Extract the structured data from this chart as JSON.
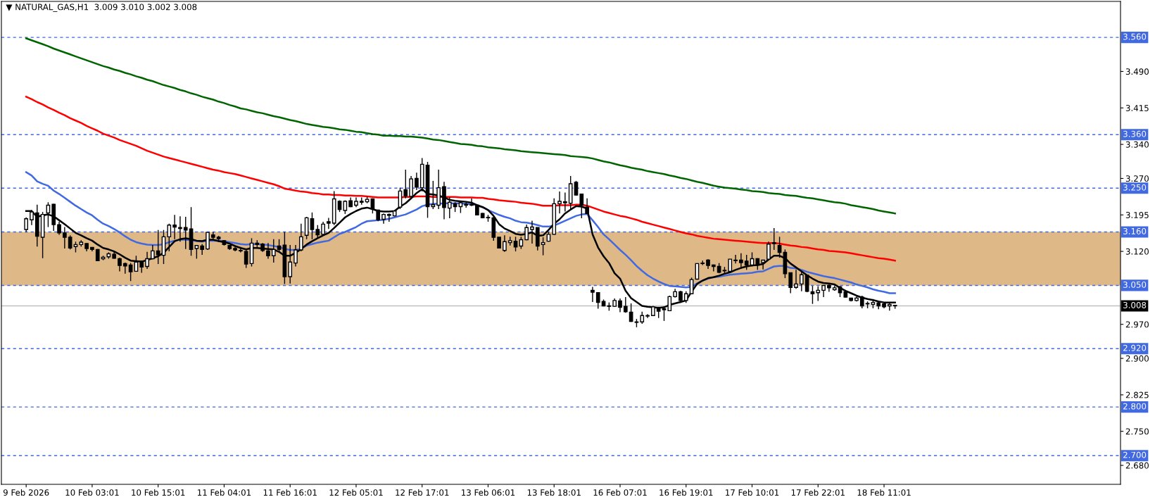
{
  "chart_data": {
    "type": "candlestick",
    "title": "▼ NATURAL_GAS,H1  3.009 3.010 3.002 3.008",
    "color": "#000000",
    "categories": [
      "9 Feb 2026",
      null,
      null,
      null,
      null,
      null,
      null,
      null,
      null,
      null,
      null,
      null,
      "10 Feb 03:01",
      null,
      null,
      null,
      null,
      null,
      null,
      null,
      null,
      null,
      null,
      null,
      "10 Feb 15:01",
      null,
      null,
      null,
      null,
      null,
      null,
      null,
      null,
      null,
      null,
      null,
      "11 Feb 04:01",
      null,
      null,
      null,
      null,
      null,
      null,
      null,
      null,
      null,
      null,
      null,
      "11 Feb 16:01",
      null,
      null,
      null,
      null,
      null,
      null,
      null,
      null,
      null,
      null,
      null,
      "12 Feb 05:01",
      null,
      null,
      null,
      null,
      null,
      null,
      null,
      null,
      null,
      null,
      null,
      "12 Feb 17:01",
      null,
      null,
      null,
      null,
      null,
      null,
      null,
      null,
      null,
      null,
      null,
      "13 Feb 06:01",
      null,
      null,
      null,
      null,
      null,
      null,
      null,
      null,
      null,
      null,
      null,
      "13 Feb 18:01",
      null,
      null,
      null,
      null,
      null,
      null,
      null,
      null,
      null,
      null,
      null,
      "16 Feb 07:01",
      null,
      null,
      null,
      null,
      null,
      null,
      null,
      null,
      null,
      null,
      null,
      "16 Feb 19:01",
      null,
      null,
      null,
      null,
      null,
      null,
      null,
      null,
      null,
      null,
      null,
      "17 Feb 10:01",
      null,
      null,
      null,
      null,
      null,
      null,
      null,
      null,
      null,
      null,
      null,
      "17 Feb 22:01",
      null,
      null,
      null,
      null,
      null,
      null,
      null,
      null,
      null,
      null,
      null,
      "18 Feb 11:01",
      null,
      null
    ],
    "ohlc": [
      [
        3.165,
        3.19,
        3.16,
        3.187
      ],
      [
        3.185,
        3.205,
        3.174,
        3.201
      ],
      [
        3.199,
        3.216,
        3.13,
        3.151
      ],
      [
        3.149,
        3.201,
        3.106,
        3.196
      ],
      [
        3.199,
        3.221,
        3.17,
        3.215
      ],
      [
        3.217,
        3.218,
        3.162,
        3.175
      ],
      [
        3.175,
        3.181,
        3.154,
        3.158
      ],
      [
        3.158,
        3.17,
        3.126,
        3.149
      ],
      [
        3.149,
        3.153,
        3.124,
        3.127
      ],
      [
        3.13,
        3.14,
        3.118,
        3.134
      ],
      [
        3.134,
        3.143,
        3.13,
        3.139
      ],
      [
        3.136,
        3.137,
        3.12,
        3.126
      ],
      [
        3.128,
        3.128,
        3.12,
        3.124
      ],
      [
        3.124,
        3.125,
        3.1,
        3.101
      ],
      [
        3.105,
        3.111,
        3.102,
        3.108
      ],
      [
        3.109,
        3.118,
        3.105,
        3.115
      ],
      [
        3.114,
        3.121,
        3.105,
        3.106
      ],
      [
        3.105,
        3.107,
        3.079,
        3.091
      ],
      [
        3.095,
        3.097,
        3.074,
        3.09
      ],
      [
        3.092,
        3.096,
        3.059,
        3.078
      ],
      [
        3.079,
        3.111,
        3.078,
        3.098
      ],
      [
        3.098,
        3.101,
        3.076,
        3.088
      ],
      [
        3.089,
        3.119,
        3.084,
        3.105
      ],
      [
        3.105,
        3.133,
        3.104,
        3.121
      ],
      [
        3.121,
        3.164,
        3.094,
        3.113
      ],
      [
        3.112,
        3.164,
        3.094,
        3.15
      ],
      [
        3.15,
        3.177,
        3.12,
        3.174
      ],
      [
        3.174,
        3.195,
        3.145,
        3.17
      ],
      [
        3.169,
        3.192,
        3.14,
        3.167
      ],
      [
        3.169,
        3.191,
        3.125,
        3.164
      ],
      [
        3.166,
        3.211,
        3.111,
        3.124
      ],
      [
        3.126,
        3.133,
        3.105,
        3.132
      ],
      [
        3.131,
        3.135,
        3.113,
        3.124
      ],
      [
        3.125,
        3.159,
        3.123,
        3.159
      ],
      [
        3.154,
        3.16,
        3.145,
        3.149
      ],
      [
        3.149,
        3.152,
        3.139,
        3.146
      ],
      [
        3.142,
        3.143,
        3.132,
        3.134
      ],
      [
        3.132,
        3.132,
        3.123,
        3.126
      ],
      [
        3.126,
        3.13,
        3.12,
        3.123
      ],
      [
        3.122,
        3.129,
        3.118,
        3.121
      ],
      [
        3.12,
        3.125,
        3.086,
        3.094
      ],
      [
        3.095,
        3.147,
        3.089,
        3.137
      ],
      [
        3.137,
        3.143,
        3.129,
        3.134
      ],
      [
        3.135,
        3.137,
        3.119,
        3.122
      ],
      [
        3.121,
        3.137,
        3.105,
        3.111
      ],
      [
        3.111,
        3.145,
        3.097,
        3.124
      ],
      [
        3.131,
        3.145,
        3.12,
        3.124
      ],
      [
        3.133,
        3.16,
        3.053,
        3.068
      ],
      [
        3.068,
        3.133,
        3.054,
        3.098
      ],
      [
        3.096,
        3.133,
        3.089,
        3.123
      ],
      [
        3.123,
        3.177,
        3.12,
        3.15
      ],
      [
        3.153,
        3.191,
        3.145,
        3.189
      ],
      [
        3.187,
        3.2,
        3.145,
        3.165
      ],
      [
        3.165,
        3.174,
        3.147,
        3.154
      ],
      [
        3.155,
        3.181,
        3.152,
        3.176
      ],
      [
        3.181,
        3.189,
        3.166,
        3.178
      ],
      [
        3.178,
        3.244,
        3.174,
        3.228
      ],
      [
        3.223,
        3.225,
        3.201,
        3.206
      ],
      [
        3.204,
        3.225,
        3.197,
        3.223
      ],
      [
        3.224,
        3.231,
        3.211,
        3.212
      ],
      [
        3.215,
        3.231,
        3.211,
        3.223
      ],
      [
        3.223,
        3.231,
        3.216,
        3.221
      ],
      [
        3.222,
        3.233,
        3.219,
        3.227
      ],
      [
        3.228,
        3.229,
        3.198,
        3.207
      ],
      [
        3.205,
        3.206,
        3.182,
        3.185
      ],
      [
        3.186,
        3.198,
        3.177,
        3.196
      ],
      [
        3.196,
        3.198,
        3.181,
        3.194
      ],
      [
        3.193,
        3.205,
        3.192,
        3.203
      ],
      [
        3.211,
        3.251,
        3.207,
        3.244
      ],
      [
        3.247,
        3.288,
        3.229,
        3.234
      ],
      [
        3.233,
        3.275,
        3.233,
        3.269
      ],
      [
        3.27,
        3.282,
        3.246,
        3.252
      ],
      [
        3.251,
        3.312,
        3.243,
        3.299
      ],
      [
        3.297,
        3.304,
        3.189,
        3.212
      ],
      [
        3.212,
        3.265,
        3.207,
        3.216
      ],
      [
        3.215,
        3.288,
        3.207,
        3.251
      ],
      [
        3.253,
        3.263,
        3.186,
        3.21
      ],
      [
        3.209,
        3.231,
        3.188,
        3.221
      ],
      [
        3.218,
        3.221,
        3.201,
        3.212
      ],
      [
        3.212,
        3.224,
        3.199,
        3.22
      ],
      [
        3.217,
        3.221,
        3.21,
        3.215
      ],
      [
        3.216,
        3.229,
        3.213,
        3.215
      ],
      [
        3.215,
        3.216,
        3.195,
        3.195
      ],
      [
        3.198,
        3.199,
        3.188,
        3.189
      ],
      [
        3.19,
        3.195,
        3.181,
        3.189
      ],
      [
        3.189,
        3.192,
        3.142,
        3.149
      ],
      [
        3.149,
        3.149,
        3.126,
        3.127
      ],
      [
        3.122,
        3.153,
        3.119,
        3.14
      ],
      [
        3.138,
        3.15,
        3.132,
        3.142
      ],
      [
        3.141,
        3.15,
        3.12,
        3.129
      ],
      [
        3.131,
        3.15,
        3.125,
        3.144
      ],
      [
        3.144,
        3.175,
        3.143,
        3.169
      ],
      [
        3.165,
        3.183,
        3.136,
        3.17
      ],
      [
        3.169,
        3.169,
        3.122,
        3.131
      ],
      [
        3.134,
        3.149,
        3.112,
        3.138
      ],
      [
        3.141,
        3.16,
        3.14,
        3.155
      ],
      [
        3.155,
        3.229,
        3.154,
        3.218
      ],
      [
        3.218,
        3.243,
        3.198,
        3.223
      ],
      [
        3.22,
        3.241,
        3.202,
        3.222
      ],
      [
        3.219,
        3.275,
        3.205,
        3.259
      ],
      [
        3.262,
        3.265,
        3.235,
        3.236
      ],
      [
        3.238,
        3.238,
        3.188,
        3.215
      ],
      [
        3.211,
        3.229,
        3.198,
        3.198
      ],
      [
        3.04,
        3.047,
        3.016,
        3.036
      ],
      [
        3.035,
        3.035,
        3.002,
        3.015
      ],
      [
        3.017,
        3.021,
        3.007,
        3.008
      ],
      [
        3.008,
        3.015,
        2.998,
        3.007
      ],
      [
        3.007,
        3.023,
        3.006,
        3.019
      ],
      [
        3.018,
        3.023,
        2.995,
        3.005
      ],
      [
        3.007,
        3.026,
        2.994,
        2.996
      ],
      [
        2.995,
        3.013,
        2.975,
        2.976
      ],
      [
        2.975,
        2.981,
        2.964,
        2.974
      ],
      [
        2.975,
        2.996,
        2.971,
        2.988
      ],
      [
        2.987,
        2.991,
        2.983,
        2.988
      ],
      [
        2.988,
        3.008,
        2.987,
        3.006
      ],
      [
        3.004,
        3.006,
        2.983,
        2.997
      ],
      [
        3.0,
        3.007,
        2.977,
        3.002
      ],
      [
        2.998,
        3.029,
        2.998,
        3.027
      ],
      [
        3.027,
        3.043,
        3.025,
        3.037
      ],
      [
        3.037,
        3.039,
        3.014,
        3.019
      ],
      [
        3.019,
        3.038,
        3.014,
        3.033
      ],
      [
        3.033,
        3.066,
        3.032,
        3.062
      ],
      [
        3.063,
        3.095,
        3.062,
        3.095
      ],
      [
        3.095,
        3.101,
        3.092,
        3.096
      ],
      [
        3.102,
        3.104,
        3.084,
        3.091
      ],
      [
        3.092,
        3.093,
        3.079,
        3.089
      ],
      [
        3.089,
        3.096,
        3.075,
        3.077
      ],
      [
        3.081,
        3.088,
        3.075,
        3.08
      ],
      [
        3.079,
        3.104,
        3.077,
        3.104
      ],
      [
        3.102,
        3.113,
        3.095,
        3.101
      ],
      [
        3.102,
        3.116,
        3.084,
        3.097
      ],
      [
        3.1,
        3.113,
        3.082,
        3.092
      ],
      [
        3.092,
        3.118,
        3.089,
        3.105
      ],
      [
        3.105,
        3.106,
        3.082,
        3.092
      ],
      [
        3.097,
        3.102,
        3.083,
        3.102
      ],
      [
        3.104,
        3.14,
        3.103,
        3.135
      ],
      [
        3.136,
        3.168,
        3.123,
        3.138
      ],
      [
        3.132,
        3.15,
        3.107,
        3.118
      ],
      [
        3.118,
        3.124,
        3.065,
        3.074
      ],
      [
        3.076,
        3.076,
        3.034,
        3.046
      ],
      [
        3.046,
        3.082,
        3.043,
        3.053
      ],
      [
        3.053,
        3.08,
        3.038,
        3.072
      ],
      [
        3.071,
        3.071,
        3.036,
        3.038
      ],
      [
        3.037,
        3.049,
        3.012,
        3.033
      ],
      [
        3.035,
        3.048,
        3.018,
        3.04
      ],
      [
        3.04,
        3.05,
        3.026,
        3.05
      ],
      [
        3.05,
        3.052,
        3.037,
        3.045
      ],
      [
        3.041,
        3.049,
        3.039,
        3.045
      ],
      [
        3.047,
        3.049,
        3.026,
        3.035
      ],
      [
        3.037,
        3.038,
        3.025,
        3.026
      ],
      [
        3.024,
        3.024,
        3.017,
        3.019
      ],
      [
        3.019,
        3.027,
        3.017,
        3.024
      ],
      [
        3.026,
        3.029,
        3.003,
        3.008
      ],
      [
        3.013,
        3.017,
        3.003,
        3.012
      ],
      [
        3.011,
        3.022,
        3.003,
        3.015
      ],
      [
        3.014,
        3.017,
        3.001,
        3.008
      ],
      [
        3.012,
        3.014,
        3.003,
        3.006
      ],
      [
        3.008,
        3.014,
        2.998,
        3.011
      ],
      [
        3.009,
        3.01,
        3.002,
        3.008
      ]
    ],
    "series": [
      {
        "type": "line",
        "color": "#006400",
        "values": [
          3.558,
          3.554,
          3.55,
          3.546,
          3.542,
          3.537,
          3.533,
          3.529,
          3.525,
          3.521,
          3.517,
          3.513,
          3.509,
          3.505,
          3.501,
          3.498,
          3.494,
          3.491,
          3.487,
          3.484,
          3.48,
          3.477,
          3.473,
          3.47,
          3.466,
          3.462,
          3.459,
          3.456,
          3.452,
          3.449,
          3.445,
          3.442,
          3.438,
          3.435,
          3.432,
          3.428,
          3.425,
          3.421,
          3.418,
          3.414,
          3.412,
          3.409,
          3.406,
          3.404,
          3.401,
          3.398,
          3.396,
          3.393,
          3.39,
          3.388,
          3.385,
          3.382,
          3.38,
          3.378,
          3.376,
          3.375,
          3.373,
          3.371,
          3.37,
          3.368,
          3.366,
          3.365,
          3.363,
          3.361,
          3.36,
          3.358,
          3.358,
          3.357,
          3.357,
          3.356,
          3.356,
          3.355,
          3.354,
          3.352,
          3.35,
          3.349,
          3.347,
          3.345,
          3.343,
          3.341,
          3.34,
          3.339,
          3.337,
          3.336,
          3.334,
          3.333,
          3.332,
          3.33,
          3.329,
          3.328,
          3.326,
          3.325,
          3.324,
          3.323,
          3.322,
          3.321,
          3.32,
          3.319,
          3.318,
          3.316,
          3.315,
          3.314,
          3.313,
          3.311,
          3.308,
          3.305,
          3.303,
          3.3,
          3.297,
          3.295,
          3.292,
          3.29,
          3.288,
          3.285,
          3.283,
          3.281,
          3.279,
          3.276,
          3.274,
          3.271,
          3.269,
          3.266,
          3.263,
          3.261,
          3.258,
          3.255,
          3.253,
          3.251,
          3.25,
          3.249,
          3.247,
          3.246,
          3.244,
          3.243,
          3.242,
          3.24,
          3.239,
          3.238,
          3.236,
          3.235,
          3.234,
          3.232,
          3.23,
          3.229,
          3.227,
          3.225,
          3.223,
          3.221,
          3.22,
          3.218,
          3.215,
          3.213,
          3.211,
          3.209,
          3.207,
          3.204,
          3.202,
          3.2,
          3.198
        ]
      },
      {
        "type": "line",
        "color": "#ff0000",
        "values": [
          3.438,
          3.433,
          3.427,
          3.422,
          3.416,
          3.411,
          3.405,
          3.4,
          3.394,
          3.389,
          3.384,
          3.378,
          3.373,
          3.368,
          3.362,
          3.358,
          3.354,
          3.349,
          3.345,
          3.341,
          3.337,
          3.332,
          3.327,
          3.323,
          3.319,
          3.315,
          3.312,
          3.309,
          3.306,
          3.303,
          3.3,
          3.297,
          3.294,
          3.291,
          3.288,
          3.286,
          3.283,
          3.281,
          3.279,
          3.276,
          3.273,
          3.27,
          3.267,
          3.264,
          3.261,
          3.258,
          3.254,
          3.249,
          3.247,
          3.245,
          3.243,
          3.242,
          3.24,
          3.239,
          3.237,
          3.237,
          3.236,
          3.236,
          3.235,
          3.235,
          3.234,
          3.234,
          3.233,
          3.232,
          3.231,
          3.231,
          3.231,
          3.231,
          3.231,
          3.232,
          3.232,
          3.233,
          3.233,
          3.233,
          3.232,
          3.232,
          3.232,
          3.232,
          3.232,
          3.231,
          3.231,
          3.231,
          3.23,
          3.23,
          3.228,
          3.227,
          3.225,
          3.224,
          3.223,
          3.222,
          3.22,
          3.219,
          3.218,
          3.216,
          3.214,
          3.214,
          3.214,
          3.215,
          3.215,
          3.215,
          3.216,
          3.216,
          3.214,
          3.21,
          3.206,
          3.202,
          3.199,
          3.196,
          3.193,
          3.191,
          3.188,
          3.185,
          3.181,
          3.178,
          3.175,
          3.172,
          3.169,
          3.166,
          3.163,
          3.16,
          3.157,
          3.155,
          3.152,
          3.15,
          3.148,
          3.146,
          3.145,
          3.144,
          3.143,
          3.142,
          3.141,
          3.14,
          3.139,
          3.138,
          3.137,
          3.137,
          3.137,
          3.136,
          3.134,
          3.132,
          3.131,
          3.129,
          3.128,
          3.126,
          3.124,
          3.123,
          3.121,
          3.12,
          3.119,
          3.118,
          3.116,
          3.114,
          3.112,
          3.11,
          3.108,
          3.106,
          3.105,
          3.103,
          3.101
        ]
      },
      {
        "type": "line",
        "color": "#4169e1",
        "values": [
          3.283,
          3.276,
          3.264,
          3.259,
          3.255,
          3.245,
          3.238,
          3.23,
          3.222,
          3.214,
          3.207,
          3.2,
          3.194,
          3.185,
          3.177,
          3.172,
          3.166,
          3.159,
          3.151,
          3.144,
          3.139,
          3.136,
          3.134,
          3.133,
          3.133,
          3.135,
          3.139,
          3.142,
          3.144,
          3.144,
          3.143,
          3.141,
          3.14,
          3.142,
          3.142,
          3.142,
          3.141,
          3.139,
          3.137,
          3.135,
          3.134,
          3.135,
          3.135,
          3.134,
          3.133,
          3.131,
          3.129,
          3.125,
          3.123,
          3.123,
          3.125,
          3.132,
          3.135,
          3.138,
          3.14,
          3.142,
          3.149,
          3.156,
          3.16,
          3.165,
          3.17,
          3.177,
          3.182,
          3.183,
          3.184,
          3.185,
          3.187,
          3.19,
          3.193,
          3.196,
          3.201,
          3.206,
          3.213,
          3.216,
          3.218,
          3.218,
          3.219,
          3.219,
          3.219,
          3.219,
          3.218,
          3.217,
          3.215,
          3.211,
          3.205,
          3.2,
          3.195,
          3.191,
          3.188,
          3.183,
          3.18,
          3.179,
          3.177,
          3.174,
          3.171,
          3.171,
          3.173,
          3.178,
          3.183,
          3.188,
          3.193,
          3.196,
          3.197,
          3.184,
          3.17,
          3.155,
          3.145,
          3.134,
          3.123,
          3.113,
          3.102,
          3.09,
          3.08,
          3.071,
          3.064,
          3.058,
          3.053,
          3.049,
          3.048,
          3.047,
          3.046,
          3.047,
          3.054,
          3.06,
          3.064,
          3.067,
          3.068,
          3.07,
          3.072,
          3.073,
          3.074,
          3.075,
          3.076,
          3.078,
          3.079,
          3.084,
          3.089,
          3.09,
          3.09,
          3.086,
          3.085,
          3.082,
          3.078,
          3.075,
          3.072,
          3.069,
          3.067,
          3.065,
          3.062,
          3.059,
          3.056,
          3.052,
          3.049,
          3.046,
          3.042,
          3.039,
          3.037,
          3.034,
          3.034
        ]
      },
      {
        "type": "line",
        "color": "#000000",
        "values": [
          3.203,
          3.203,
          3.191,
          3.194,
          3.196,
          3.192,
          3.184,
          3.176,
          3.167,
          3.158,
          3.153,
          3.147,
          3.142,
          3.134,
          3.127,
          3.124,
          3.12,
          3.114,
          3.107,
          3.101,
          3.1,
          3.099,
          3.102,
          3.106,
          3.11,
          3.117,
          3.129,
          3.141,
          3.145,
          3.147,
          3.145,
          3.142,
          3.141,
          3.144,
          3.144,
          3.141,
          3.139,
          3.136,
          3.131,
          3.127,
          3.124,
          3.127,
          3.127,
          3.126,
          3.125,
          3.124,
          3.119,
          3.111,
          3.111,
          3.117,
          3.125,
          3.134,
          3.141,
          3.147,
          3.153,
          3.158,
          3.168,
          3.179,
          3.19,
          3.197,
          3.203,
          3.208,
          3.21,
          3.207,
          3.203,
          3.202,
          3.202,
          3.203,
          3.212,
          3.219,
          3.229,
          3.24,
          3.248,
          3.238,
          3.237,
          3.235,
          3.231,
          3.226,
          3.224,
          3.223,
          3.222,
          3.22,
          3.215,
          3.211,
          3.205,
          3.193,
          3.176,
          3.167,
          3.162,
          3.156,
          3.154,
          3.156,
          3.159,
          3.152,
          3.153,
          3.164,
          3.177,
          3.186,
          3.198,
          3.206,
          3.213,
          3.212,
          3.208,
          3.155,
          3.128,
          3.11,
          3.096,
          3.075,
          3.064,
          3.039,
          3.024,
          3.016,
          3.008,
          3.006,
          3.005,
          3.004,
          3.005,
          3.01,
          3.013,
          3.016,
          3.019,
          3.037,
          3.053,
          3.06,
          3.065,
          3.067,
          3.07,
          3.074,
          3.077,
          3.082,
          3.086,
          3.089,
          3.091,
          3.092,
          3.094,
          3.103,
          3.111,
          3.111,
          3.106,
          3.095,
          3.087,
          3.079,
          3.071,
          3.064,
          3.058,
          3.055,
          3.054,
          3.052,
          3.045,
          3.039,
          3.034,
          3.029,
          3.025,
          3.022,
          3.02,
          3.017,
          3.015,
          3.015,
          3.015
        ]
      }
    ],
    "ylim": [
      2.641,
      3.634
    ],
    "yticks": [
      {
        "value": 3.49,
        "label": "3.490"
      },
      {
        "value": 3.415,
        "label": "3.415"
      },
      {
        "value": 3.34,
        "label": "3.340"
      },
      {
        "value": 3.27,
        "label": "3.270"
      },
      {
        "value": 3.195,
        "label": "3.195"
      },
      {
        "value": 3.12,
        "label": "3.120"
      },
      {
        "value": 2.97,
        "label": "2.970"
      },
      {
        "value": 2.9,
        "label": "2.900"
      },
      {
        "value": 2.825,
        "label": "2.825"
      },
      {
        "value": 2.75,
        "label": "2.750"
      },
      {
        "value": 2.68,
        "label": "2.680"
      }
    ],
    "ref_lines": [
      {
        "axis": "y",
        "value": 3.56,
        "label": "3.560",
        "color": "#4169e1",
        "line_style": "dashed"
      },
      {
        "axis": "y",
        "value": 3.36,
        "label": "3.360",
        "color": "#4169e1",
        "line_style": "dashed"
      },
      {
        "axis": "y",
        "value": 3.25,
        "label": "3.250",
        "color": "#4169e1",
        "line_style": "dashed"
      },
      {
        "axis": "y",
        "value": 3.16,
        "label": "3.160",
        "color": "#4169e1",
        "line_style": "dashed"
      },
      {
        "axis": "y",
        "value": 3.05,
        "label": "3.050",
        "color": "#4169e1",
        "line_style": "dashed"
      },
      {
        "axis": "y",
        "value": 2.92,
        "label": "2.920",
        "color": "#4169e1",
        "line_style": "dashed"
      },
      {
        "axis": "y",
        "value": 2.8,
        "label": "2.800",
        "color": "#4169e1",
        "line_style": "dashed"
      },
      {
        "axis": "y",
        "value": 2.7,
        "label": "2.700",
        "color": "#4169e1",
        "line_style": "dashed"
      },
      {
        "axis": "y",
        "value": 3.008,
        "label": "3.008",
        "color": "#c0c0c0",
        "line_style": "solid"
      }
    ],
    "bands": [
      {
        "axis": "y",
        "from": 3.05,
        "to": 3.16,
        "color": "#deb887"
      }
    ],
    "grid": false,
    "legend": false
  }
}
